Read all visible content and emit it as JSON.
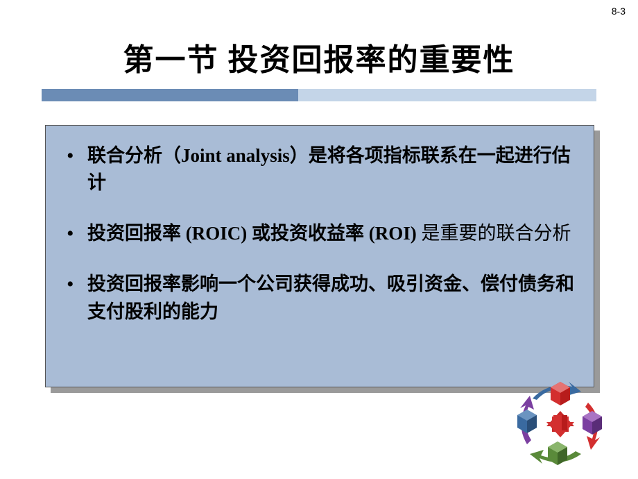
{
  "page_number": "8-3",
  "title": "第一节   投资回报率的重要性",
  "colors": {
    "slide_bg": "#ffffff",
    "box_bg": "#a9bcd6",
    "box_shadow": "#9a9a9a",
    "underline_light": "#c4d5e8",
    "underline_dark": "#6b8cb5",
    "text": "#000000"
  },
  "bullets": [
    {
      "parts": [
        {
          "text": "联合分析（",
          "bold": true
        },
        {
          "text": "Joint analysis",
          "bold": true,
          "roman": true
        },
        {
          "text": "）是将各项指标联系在一起进行估计",
          "bold": true
        }
      ]
    },
    {
      "parts": [
        {
          "text": "投资回报率 ",
          "bold": true
        },
        {
          "text": "(ROIC) ",
          "bold": true,
          "roman": true
        },
        {
          "text": "或投资收益率 ",
          "bold": true
        },
        {
          "text": "(ROI) ",
          "bold": true,
          "roman": true
        },
        {
          "text": "是重要的联合分析",
          "bold": false
        }
      ]
    },
    {
      "parts": [
        {
          "text": "投资回报率影响一个公司获得成功、吸引资金、偿付债务和支付股利的能力",
          "bold": true
        }
      ]
    }
  ],
  "diagram": {
    "type": "infographic",
    "description": "3D cycle diagram with cubes and arrows",
    "cube_colors": [
      "#d32f2f",
      "#7b3fa0",
      "#5a8a3a",
      "#3a6aa0"
    ],
    "arrow_colors": [
      "#d32f2f",
      "#5a8a3a",
      "#3a6aa0",
      "#7b3fa0"
    ],
    "center_arrow_color": "#d32f2f"
  }
}
